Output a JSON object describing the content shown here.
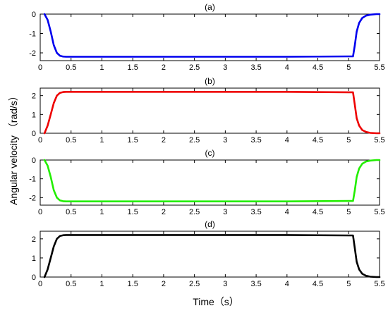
{
  "figure": {
    "xlabel": "Time（s）",
    "ylabel": "Angular velocity （rad/s）"
  },
  "chart_data": [
    {
      "type": "line",
      "title": "(a)",
      "xlim": [
        0,
        5.5
      ],
      "ylim": [
        -2.4,
        0
      ],
      "xticks": [
        "0",
        "0.5",
        "1",
        "1.5",
        "2",
        "2.5",
        "3",
        "3.5",
        "4",
        "4.5",
        "5",
        "5.5"
      ],
      "yticks": [
        "0",
        "-1",
        "-2"
      ],
      "ytick_values": [
        0,
        -1,
        -2
      ],
      "series": [
        {
          "color": "#0000ee",
          "x": [
            0.07,
            0.12,
            0.17,
            0.22,
            0.27,
            0.32,
            0.37,
            0.42,
            0.5,
            1,
            2,
            3,
            4,
            5,
            5.07,
            5.1,
            5.13,
            5.17,
            5.22,
            5.28,
            5.35,
            5.45,
            5.5
          ],
          "y": [
            0,
            -0.3,
            -0.9,
            -1.6,
            -2.0,
            -2.15,
            -2.19,
            -2.2,
            -2.2,
            -2.2,
            -2.2,
            -2.2,
            -2.2,
            -2.18,
            -2.18,
            -1.6,
            -0.9,
            -0.45,
            -0.2,
            -0.08,
            -0.03,
            0,
            0
          ]
        }
      ]
    },
    {
      "type": "line",
      "title": "(b)",
      "xlim": [
        0,
        5.5
      ],
      "ylim": [
        0,
        2.4
      ],
      "xticks": [
        "0",
        "0.5",
        "1",
        "1.5",
        "2",
        "2.5",
        "3",
        "3.5",
        "4",
        "4.5",
        "5",
        "5.5"
      ],
      "yticks": [
        "2",
        "1",
        "0"
      ],
      "ytick_values": [
        2,
        1,
        0
      ],
      "series": [
        {
          "color": "#ee0000",
          "x": [
            0.07,
            0.12,
            0.17,
            0.22,
            0.27,
            0.32,
            0.37,
            0.42,
            0.5,
            1,
            2,
            3,
            4,
            5,
            5.07,
            5.1,
            5.13,
            5.17,
            5.22,
            5.28,
            5.35,
            5.45,
            5.5
          ],
          "y": [
            0,
            0.4,
            1.0,
            1.6,
            2.0,
            2.15,
            2.19,
            2.2,
            2.2,
            2.2,
            2.2,
            2.2,
            2.2,
            2.18,
            2.18,
            1.5,
            0.8,
            0.4,
            0.17,
            0.07,
            0.02,
            0,
            0
          ]
        }
      ]
    },
    {
      "type": "line",
      "title": "(c)",
      "xlim": [
        0,
        5.5
      ],
      "ylim": [
        -2.4,
        0
      ],
      "xticks": [
        "0",
        "0.5",
        "1",
        "1.5",
        "2",
        "2.5",
        "3",
        "3.5",
        "4",
        "4.5",
        "5",
        "5.5"
      ],
      "yticks": [
        "0",
        "-1",
        "-2"
      ],
      "ytick_values": [
        0,
        -1,
        -2
      ],
      "series": [
        {
          "color": "#22ee00",
          "x": [
            0.07,
            0.12,
            0.17,
            0.22,
            0.27,
            0.32,
            0.37,
            0.42,
            0.5,
            1,
            2,
            3,
            4,
            5,
            5.07,
            5.1,
            5.13,
            5.17,
            5.22,
            5.28,
            5.35,
            5.45,
            5.5
          ],
          "y": [
            0,
            -0.3,
            -0.9,
            -1.6,
            -2.0,
            -2.15,
            -2.19,
            -2.2,
            -2.2,
            -2.2,
            -2.2,
            -2.2,
            -2.2,
            -2.18,
            -2.18,
            -1.6,
            -0.9,
            -0.45,
            -0.2,
            -0.08,
            -0.03,
            0,
            0
          ]
        }
      ]
    },
    {
      "type": "line",
      "title": "(d)",
      "xlim": [
        0,
        5.5
      ],
      "ylim": [
        0,
        2.4
      ],
      "xticks": [
        "0",
        "0.5",
        "1",
        "1.5",
        "2",
        "2.5",
        "3",
        "3.5",
        "4",
        "4.5",
        "5",
        "5.5"
      ],
      "yticks": [
        "2",
        "1",
        "0"
      ],
      "ytick_values": [
        2,
        1,
        0
      ],
      "series": [
        {
          "color": "#000000",
          "x": [
            0.07,
            0.12,
            0.17,
            0.22,
            0.27,
            0.32,
            0.37,
            0.42,
            0.5,
            1,
            2,
            3,
            4,
            5,
            5.07,
            5.1,
            5.13,
            5.17,
            5.22,
            5.28,
            5.35,
            5.45,
            5.5
          ],
          "y": [
            0,
            0.4,
            1.0,
            1.6,
            2.0,
            2.15,
            2.19,
            2.2,
            2.2,
            2.2,
            2.2,
            2.2,
            2.2,
            2.18,
            2.18,
            1.5,
            0.8,
            0.4,
            0.17,
            0.07,
            0.02,
            0,
            0
          ]
        }
      ]
    }
  ]
}
